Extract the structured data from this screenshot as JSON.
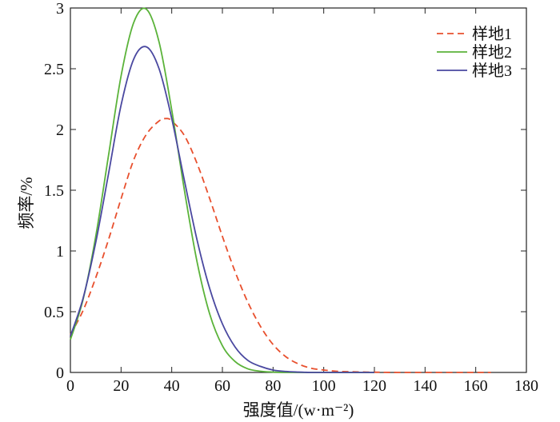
{
  "chart_data": {
    "type": "line",
    "title": "",
    "xlabel": "强度值/(w·m⁻²)",
    "ylabel": "频率/%",
    "xlim": [
      0,
      180
    ],
    "ylim": [
      0,
      3
    ],
    "xticks": [
      "0",
      "20",
      "40",
      "60",
      "80",
      "100",
      "120",
      "140",
      "160",
      "180"
    ],
    "yticks": [
      "0",
      "0.5",
      "1",
      "1.5",
      "2",
      "2.5",
      "3"
    ],
    "grid": false,
    "legend_position": "top-right",
    "series": [
      {
        "name": "样地1",
        "color": "#e8502e",
        "dash": "dashed",
        "x": [
          0,
          5,
          10,
          15,
          20,
          25,
          30,
          35,
          38,
          40,
          45,
          50,
          55,
          60,
          65,
          70,
          75,
          80,
          85,
          90,
          95,
          100,
          105,
          110,
          120,
          130,
          140,
          150,
          160,
          166
        ],
        "y": [
          0.31,
          0.51,
          0.78,
          1.09,
          1.43,
          1.75,
          1.96,
          2.07,
          2.09,
          2.07,
          1.95,
          1.72,
          1.43,
          1.12,
          0.83,
          0.58,
          0.38,
          0.23,
          0.13,
          0.07,
          0.035,
          0.02,
          0.01,
          0.006,
          0.002,
          0.0,
          0.0,
          0.0,
          0.0,
          0.0
        ]
      },
      {
        "name": "样地2",
        "color": "#5bb33a",
        "dash": "solid",
        "x": [
          0,
          5,
          10,
          15,
          20,
          25,
          30,
          35,
          40,
          45,
          50,
          55,
          60,
          65,
          70,
          75,
          80,
          85,
          90,
          100,
          110,
          120
        ],
        "y": [
          0.27,
          0.6,
          1.12,
          1.78,
          2.44,
          2.88,
          2.99,
          2.72,
          2.16,
          1.5,
          0.91,
          0.48,
          0.22,
          0.09,
          0.03,
          0.01,
          0.003,
          0.0,
          0.0,
          0.0,
          0.0,
          0.0
        ]
      },
      {
        "name": "样地3",
        "color": "#4a48a0",
        "dash": "solid",
        "x": [
          0,
          5,
          10,
          15,
          20,
          25,
          30,
          35,
          40,
          45,
          50,
          55,
          60,
          65,
          70,
          75,
          80,
          85,
          90,
          95,
          100,
          110,
          120
        ],
        "y": [
          0.3,
          0.61,
          1.07,
          1.63,
          2.2,
          2.58,
          2.68,
          2.5,
          2.09,
          1.58,
          1.09,
          0.69,
          0.4,
          0.21,
          0.1,
          0.05,
          0.02,
          0.008,
          0.003,
          0.0,
          0.0,
          0.0,
          0.0
        ]
      }
    ]
  }
}
